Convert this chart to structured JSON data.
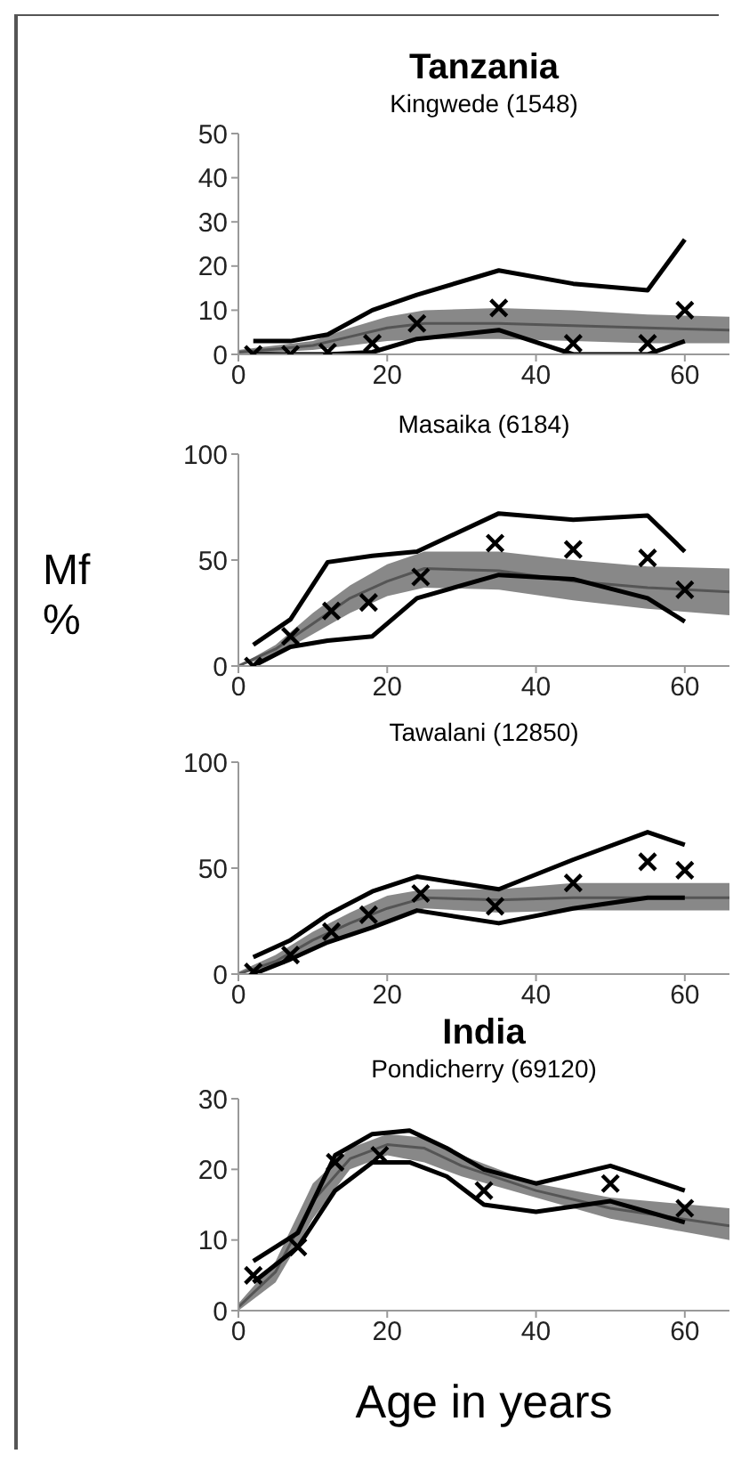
{
  "chart_data": [
    {
      "type": "line",
      "title": "Tanzania",
      "subtitle": "Kingwede (1548)",
      "xlim": [
        0,
        66
      ],
      "xticks": [
        0,
        20,
        40,
        60
      ],
      "ylim": [
        0,
        50
      ],
      "yticks": [
        0,
        10,
        20,
        30,
        40,
        50
      ],
      "series": [
        {
          "type": "line",
          "color": "#555555",
          "x": [
            0,
            5,
            10,
            15,
            20,
            25,
            35,
            45,
            55,
            66
          ],
          "values": [
            0.5,
            1.2,
            2,
            4,
            6,
            7,
            7,
            6.5,
            6,
            5.5
          ],
          "lower": [
            0,
            0.5,
            1,
            2,
            3,
            3.5,
            3.5,
            3,
            2.5,
            2.5
          ],
          "upper": [
            1,
            2,
            3,
            6,
            8.5,
            10,
            10.5,
            10,
            9,
            8.5
          ]
        },
        {
          "type": "line",
          "color": "#000000",
          "x": [
            2,
            7,
            12,
            18,
            24,
            35,
            45,
            55,
            60
          ],
          "values": [
            3,
            3,
            4.5,
            10,
            13.5,
            19,
            16,
            14.5,
            26
          ]
        },
        {
          "type": "line",
          "color": "#000000",
          "x": [
            2,
            7,
            12,
            18,
            24,
            35,
            45,
            55,
            60
          ],
          "values": [
            0,
            0,
            0,
            0.5,
            3.5,
            5.5,
            0,
            0,
            3
          ]
        },
        {
          "type": "scatter",
          "marker": "cross",
          "color": "#000000",
          "x": [
            2,
            7,
            12,
            18,
            24,
            35,
            45,
            55,
            60
          ],
          "values": [
            0,
            0,
            0.5,
            2.5,
            7,
            10.5,
            2.5,
            2.5,
            10
          ]
        }
      ]
    },
    {
      "type": "line",
      "subtitle": "Masaika (6184)",
      "ylabel": "Mf %",
      "xlim": [
        0,
        66
      ],
      "xticks": [
        0,
        20,
        40,
        60
      ],
      "ylim": [
        0,
        100
      ],
      "yticks": [
        0,
        50,
        100
      ],
      "series": [
        {
          "type": "line",
          "color": "#555555",
          "x": [
            0,
            5,
            10,
            15,
            20,
            25,
            35,
            45,
            55,
            66
          ],
          "values": [
            0,
            8,
            20,
            32,
            40,
            46,
            45,
            40,
            37,
            35
          ],
          "lower": [
            0,
            5,
            15,
            25,
            33,
            37,
            36,
            31,
            27,
            24
          ],
          "upper": [
            0,
            10,
            25,
            38,
            48,
            54,
            54,
            50,
            47,
            46
          ]
        },
        {
          "type": "line",
          "color": "#000000",
          "x": [
            2,
            7,
            12,
            18,
            24,
            35,
            45,
            55,
            60
          ],
          "values": [
            10,
            22,
            49,
            52,
            54,
            72,
            69,
            71,
            54
          ]
        },
        {
          "type": "line",
          "color": "#000000",
          "x": [
            2,
            7,
            12,
            18,
            24,
            35,
            45,
            55,
            60
          ],
          "values": [
            0,
            9,
            12,
            14,
            32,
            43,
            41,
            32,
            21
          ]
        },
        {
          "type": "scatter",
          "marker": "cross",
          "color": "#000000",
          "x": [
            2,
            7,
            12.5,
            17.5,
            24.5,
            34.5,
            45,
            55,
            60
          ],
          "values": [
            0,
            14,
            26,
            30,
            42,
            58,
            55,
            51,
            36
          ]
        }
      ]
    },
    {
      "type": "line",
      "subtitle": "Tawalani (12850)",
      "xlim": [
        0,
        66
      ],
      "xticks": [
        0,
        20,
        40,
        60
      ],
      "ylim": [
        0,
        100
      ],
      "yticks": [
        0,
        50,
        100
      ],
      "series": [
        {
          "type": "line",
          "color": "#555555",
          "x": [
            0,
            5,
            10,
            15,
            20,
            25,
            35,
            45,
            55,
            66
          ],
          "values": [
            0,
            6,
            16,
            24,
            31,
            36,
            35,
            36,
            36,
            36
          ],
          "lower": [
            0,
            4,
            12,
            19,
            25,
            31,
            29,
            30,
            30,
            30
          ],
          "upper": [
            1,
            9,
            20,
            29,
            37,
            40,
            40,
            43,
            43,
            43
          ]
        },
        {
          "type": "line",
          "color": "#000000",
          "x": [
            2,
            7,
            12,
            18,
            24,
            35,
            45,
            55,
            60
          ],
          "values": [
            8,
            16,
            28,
            39,
            46,
            40,
            54,
            67,
            61
          ]
        },
        {
          "type": "line",
          "color": "#000000",
          "x": [
            2,
            7,
            12,
            18,
            24,
            35,
            45,
            55,
            60
          ],
          "values": [
            0,
            7,
            15,
            22,
            30,
            24,
            31,
            36,
            36
          ]
        },
        {
          "type": "scatter",
          "marker": "cross",
          "color": "#000000",
          "x": [
            2,
            7,
            12.5,
            17.5,
            24.5,
            34.5,
            45,
            55,
            60
          ],
          "values": [
            1,
            9,
            20,
            28,
            38,
            32,
            43,
            53,
            49
          ]
        }
      ]
    },
    {
      "type": "line",
      "title": "India",
      "subtitle": "Pondicherry (69120)",
      "xlabel": "Age in years",
      "xlim": [
        0,
        66
      ],
      "xticks": [
        0,
        20,
        40,
        60
      ],
      "ylim": [
        0,
        30
      ],
      "yticks": [
        0,
        10,
        20,
        30
      ],
      "series": [
        {
          "type": "line",
          "color": "#555555",
          "x": [
            0,
            5,
            10,
            15,
            20,
            25,
            30,
            40,
            50,
            66
          ],
          "values": [
            0.5,
            5.5,
            15.5,
            21.5,
            23.5,
            23,
            20.5,
            17,
            14.5,
            12
          ],
          "lower": [
            0,
            4,
            13,
            20,
            22,
            21,
            19,
            16,
            13,
            10
          ],
          "upper": [
            1,
            7,
            18,
            23,
            25,
            24.5,
            22,
            18,
            16,
            14.5
          ]
        },
        {
          "type": "line",
          "color": "#000000",
          "x": [
            2,
            8,
            13,
            18,
            23,
            28,
            33,
            40,
            50,
            60
          ],
          "values": [
            7,
            11,
            22,
            25,
            25.5,
            23,
            20,
            18,
            20.5,
            17
          ]
        },
        {
          "type": "line",
          "color": "#000000",
          "x": [
            2,
            8,
            13,
            18,
            23,
            28,
            33,
            40,
            50,
            60
          ],
          "values": [
            4,
            9,
            17,
            21,
            21,
            19,
            15,
            14,
            15.5,
            12.5
          ]
        },
        {
          "type": "scatter",
          "marker": "cross",
          "color": "#000000",
          "x": [
            2,
            8,
            13,
            19,
            33,
            50,
            60
          ],
          "values": [
            5,
            9,
            21,
            22,
            17,
            18,
            14.5
          ]
        }
      ]
    }
  ]
}
